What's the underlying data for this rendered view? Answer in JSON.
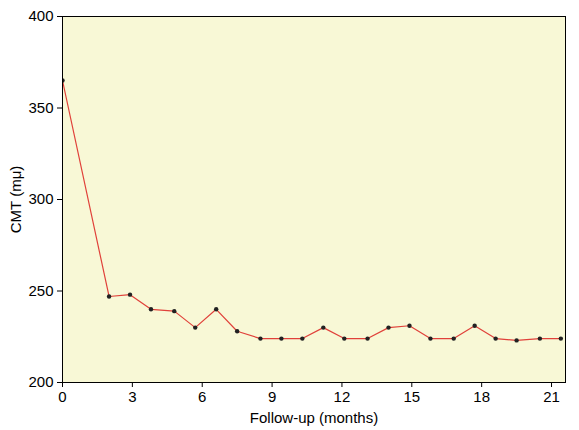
{
  "chart_data": {
    "type": "line",
    "x_label": "Follow-up (months)",
    "y_label": "CMT (mμ)",
    "x": [
      0,
      2.0,
      2.9,
      3.8,
      4.8,
      5.7,
      6.6,
      7.5,
      8.5,
      9.4,
      10.3,
      11.2,
      12.1,
      13.1,
      14.0,
      14.9,
      15.8,
      16.8,
      17.7,
      18.6,
      19.5,
      20.5,
      21.4
    ],
    "values": [
      365,
      247,
      248,
      240,
      239,
      230,
      240,
      228,
      224,
      224,
      224,
      230,
      224,
      224,
      230,
      231,
      224,
      224,
      231,
      224,
      223,
      224,
      224
    ],
    "color": "#e0413a",
    "marker": "circle",
    "xlim": [
      0,
      21.6
    ],
    "xticks": [
      0,
      3,
      6,
      9,
      12,
      15,
      18,
      21
    ],
    "ylim": [
      200,
      400
    ],
    "yticks": [
      200,
      250,
      300,
      350,
      400
    ],
    "grid": false
  }
}
